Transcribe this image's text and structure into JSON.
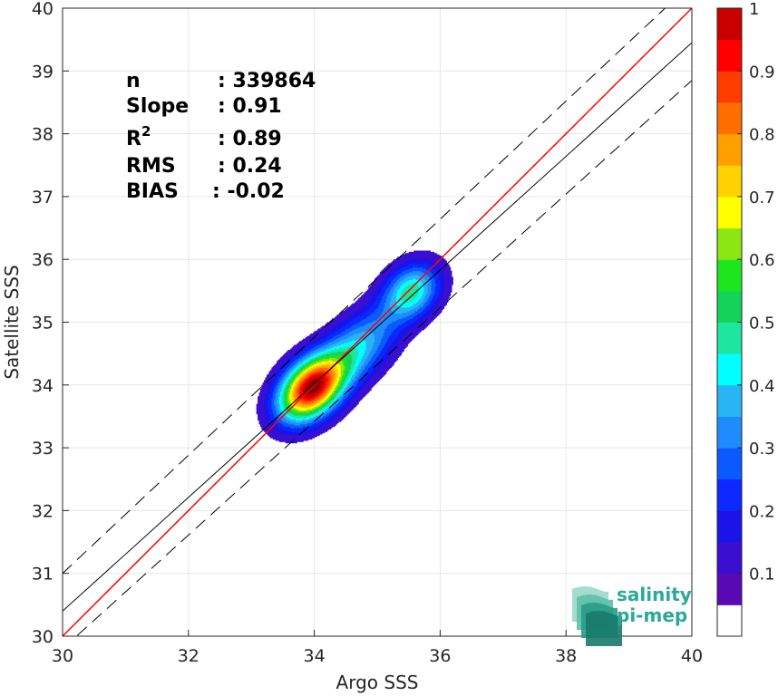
{
  "chart_data": {
    "type": "heatmap",
    "subtype": "density-contour-scatter",
    "xlabel": "Argo SSS",
    "ylabel": "Satellite SSS",
    "xlim": [
      30,
      40
    ],
    "ylim": [
      30,
      40
    ],
    "x_ticks": [
      30,
      32,
      34,
      36,
      38,
      40
    ],
    "y_ticks": [
      30,
      31,
      32,
      33,
      34,
      35,
      36,
      37,
      38,
      39,
      40
    ],
    "grid": true,
    "stats": [
      {
        "label": "n",
        "value": ": 339864"
      },
      {
        "label": "Slope",
        "value": ": 0.91"
      },
      {
        "label": "R",
        "sup": "2",
        "value": ": 0.89"
      },
      {
        "label": "RMS",
        "value": ": 0.24"
      },
      {
        "label": "BIAS",
        "value": ": -0.02"
      }
    ],
    "reference_lines": [
      {
        "name": "one-to-one",
        "color": "#ff0000",
        "style": "solid",
        "points": [
          [
            30,
            30
          ],
          [
            40,
            40
          ]
        ]
      },
      {
        "name": "regression",
        "color": "#000000",
        "style": "solid",
        "points": [
          [
            30,
            30.4
          ],
          [
            40,
            39.45
          ]
        ]
      },
      {
        "name": "upper-bound",
        "color": "#000000",
        "style": "dashed",
        "points": [
          [
            30,
            31.0
          ],
          [
            40,
            40.4
          ]
        ]
      },
      {
        "name": "lower-bound",
        "color": "#000000",
        "style": "dashed",
        "points": [
          [
            30,
            29.8
          ],
          [
            40,
            38.85
          ]
        ]
      }
    ],
    "density_peaks": [
      {
        "x": 33.95,
        "y": 33.95,
        "peak": 1.0
      },
      {
        "x": 34.7,
        "y": 34.6,
        "peak": 0.4
      },
      {
        "x": 35.55,
        "y": 35.5,
        "peak": 0.48
      }
    ],
    "colorbar": {
      "ticks": [
        0.1,
        0.2,
        0.3,
        0.4,
        0.5,
        0.6,
        0.7,
        0.8,
        0.9,
        1
      ],
      "tick_labels": [
        "0.1",
        "0.2",
        "0.3",
        "0.4",
        "0.5",
        "0.6",
        "0.7",
        "0.8",
        "0.9",
        "1"
      ],
      "levels": [
        0,
        0.05,
        0.1,
        0.15,
        0.2,
        0.25,
        0.3,
        0.35,
        0.4,
        0.45,
        0.5,
        0.55,
        0.6,
        0.65,
        0.7,
        0.75,
        0.8,
        0.85,
        0.9,
        0.95,
        1
      ],
      "colors": [
        "#ffffff",
        "#5a0ab4",
        "#3b0fd0",
        "#1a14e8",
        "#0a28ff",
        "#0a5aff",
        "#1e8cff",
        "#28b4f5",
        "#00ffff",
        "#1ee6a0",
        "#14d25a",
        "#1ee61e",
        "#8ce614",
        "#ffff00",
        "#ffd200",
        "#ffa000",
        "#ff6e00",
        "#ff3c00",
        "#ff0000",
        "#c80000",
        "#8c0000"
      ]
    }
  },
  "logo": {
    "line1": "salinity",
    "line2": "pi-mep"
  }
}
